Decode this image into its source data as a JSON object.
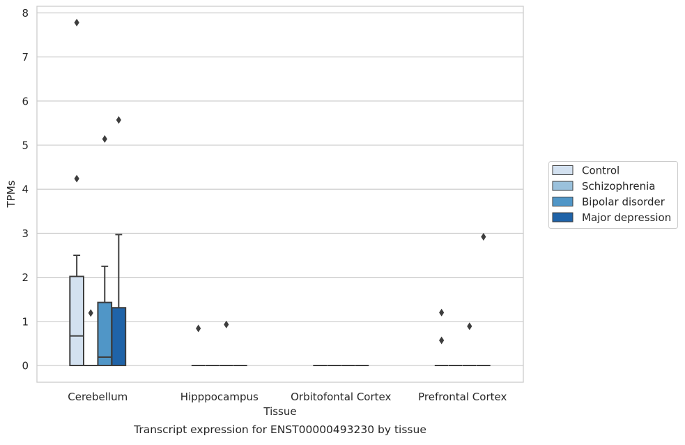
{
  "chart_data": {
    "type": "box",
    "title": "",
    "caption": "Transcript expression for ENST00000493230 by tissue",
    "xlabel": "Tissue",
    "ylabel": "TPMs",
    "ylim": [
      -0.38,
      8.15
    ],
    "yticks": [
      0,
      1,
      2,
      3,
      4,
      5,
      6,
      7,
      8
    ],
    "grid": "horizontal",
    "legend_position": "right",
    "categories": [
      "Cerebellum",
      "Hipppocampus",
      "Orbitofontal Cortex",
      "Prefrontal Cortex"
    ],
    "series": [
      {
        "name": "Control",
        "color": "#d3e1f0",
        "boxes": [
          {
            "min": 0,
            "q1": 0,
            "median": 0.67,
            "q3": 2.02,
            "max": 2.5,
            "outliers": [
              7.78,
              4.24
            ]
          },
          {
            "min": 0,
            "q1": 0,
            "median": 0,
            "q3": 0,
            "max": 0,
            "outliers": [
              0.84
            ]
          },
          {
            "min": 0,
            "q1": 0,
            "median": 0,
            "q3": 0,
            "max": 0,
            "outliers": []
          },
          {
            "min": 0,
            "q1": 0,
            "median": 0,
            "q3": 0,
            "max": 0,
            "outliers": [
              1.2,
              0.57
            ]
          }
        ]
      },
      {
        "name": "Schizophrenia",
        "color": "#9ac1dc",
        "boxes": [
          {
            "min": 0,
            "q1": 0,
            "median": 0,
            "q3": 0,
            "max": 0,
            "outliers": [
              1.19
            ]
          },
          {
            "min": 0,
            "q1": 0,
            "median": 0,
            "q3": 0,
            "max": 0,
            "outliers": []
          },
          {
            "min": 0,
            "q1": 0,
            "median": 0,
            "q3": 0,
            "max": 0,
            "outliers": []
          },
          {
            "min": 0,
            "q1": 0,
            "median": 0,
            "q3": 0,
            "max": 0,
            "outliers": []
          }
        ]
      },
      {
        "name": "Bipolar disorder",
        "color": "#5096c7",
        "boxes": [
          {
            "min": 0,
            "q1": 0,
            "median": 0.19,
            "q3": 1.43,
            "max": 2.25,
            "outliers": [
              5.14
            ]
          },
          {
            "min": 0,
            "q1": 0,
            "median": 0,
            "q3": 0,
            "max": 0,
            "outliers": [
              0.93
            ]
          },
          {
            "min": 0,
            "q1": 0,
            "median": 0,
            "q3": 0,
            "max": 0,
            "outliers": []
          },
          {
            "min": 0,
            "q1": 0,
            "median": 0,
            "q3": 0,
            "max": 0,
            "outliers": [
              0.89
            ]
          }
        ]
      },
      {
        "name": "Major depression",
        "color": "#1f63a8",
        "boxes": [
          {
            "min": 0,
            "q1": 0,
            "median": 0,
            "q3": 1.31,
            "max": 2.97,
            "outliers": [
              5.57
            ]
          },
          {
            "min": 0,
            "q1": 0,
            "median": 0,
            "q3": 0,
            "max": 0,
            "outliers": []
          },
          {
            "min": 0,
            "q1": 0,
            "median": 0,
            "q3": 0,
            "max": 0,
            "outliers": []
          },
          {
            "min": 0,
            "q1": 0,
            "median": 0,
            "q3": 0,
            "max": 0,
            "outliers": [
              2.92
            ]
          }
        ]
      }
    ]
  }
}
